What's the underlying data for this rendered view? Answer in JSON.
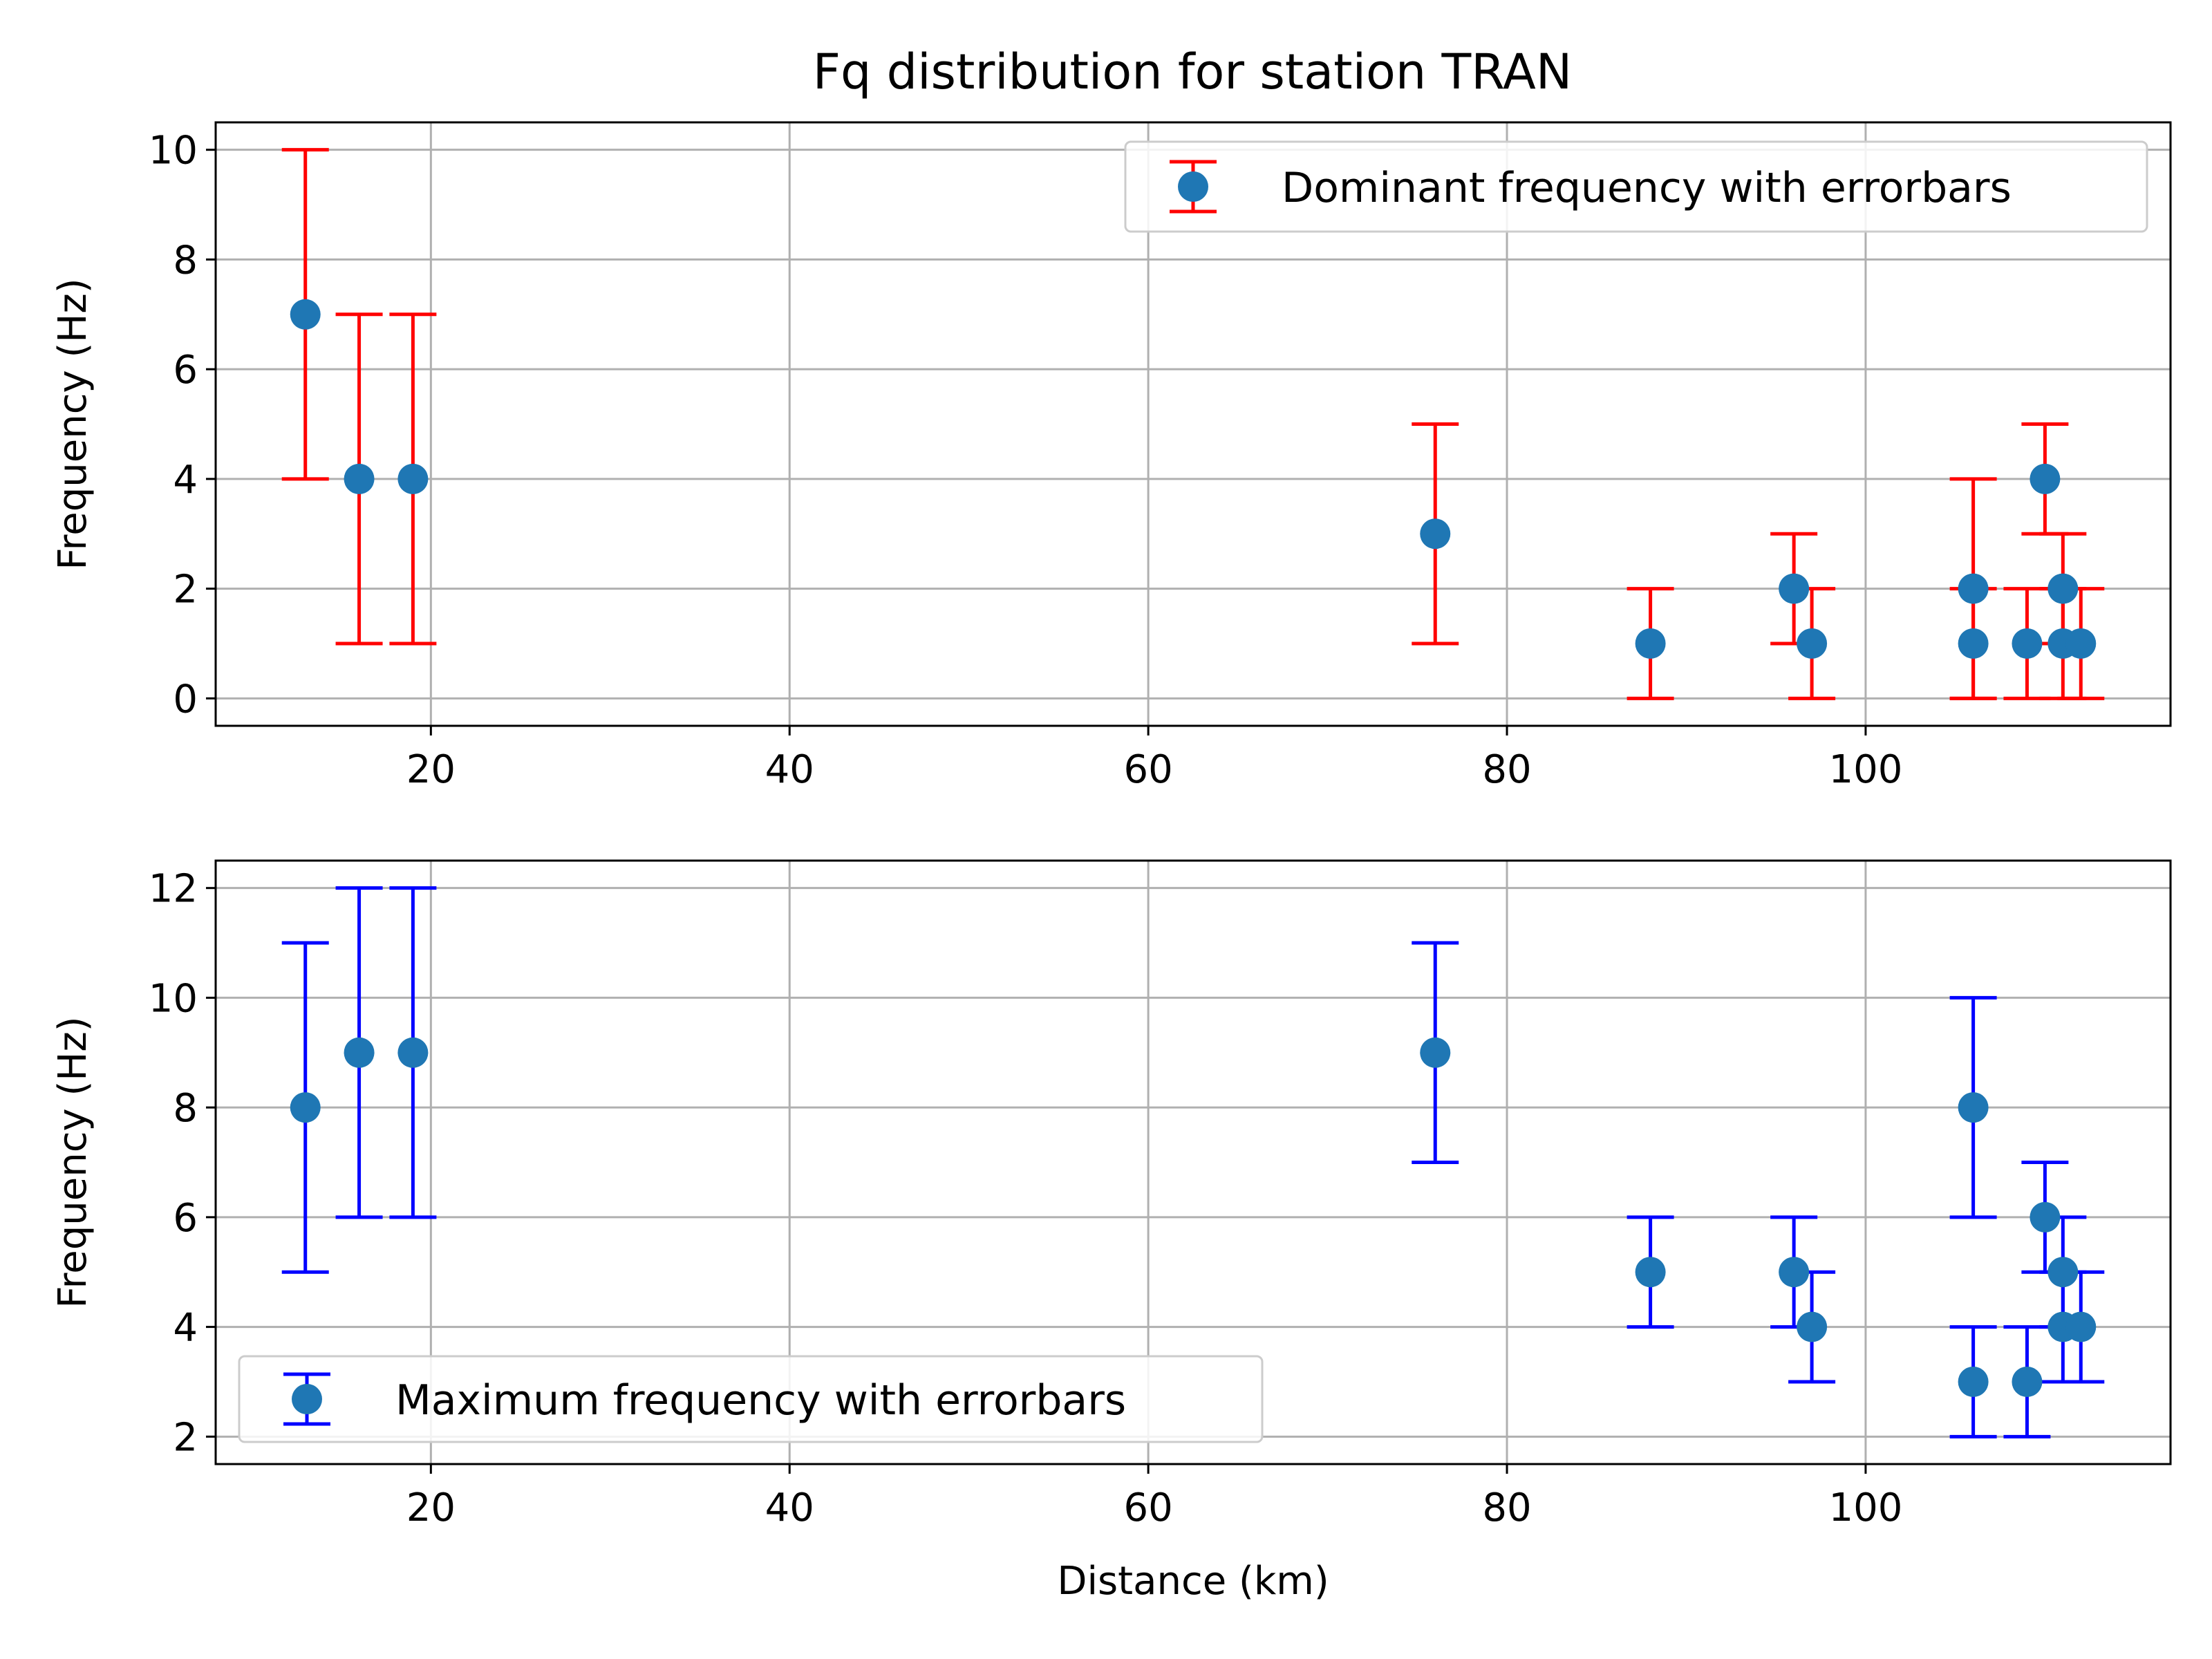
{
  "title": "Fq distribution for station TRAN",
  "colors": {
    "marker": "#1f77b4",
    "errorbar_top": "#ff0000",
    "errorbar_bottom": "#0000ff",
    "grid": "#b0b0b0",
    "legend_border": "#cccccc"
  },
  "chart_data": [
    {
      "type": "scatter",
      "title": "Fq distribution for station TRAN",
      "xlabel": "",
      "ylabel": "Frequency (Hz)",
      "xlim": [
        8,
        117
      ],
      "ylim": [
        -0.5,
        10.5
      ],
      "xticks": [
        20,
        40,
        60,
        80,
        100
      ],
      "yticks": [
        0,
        2,
        4,
        6,
        8,
        10
      ],
      "grid": true,
      "legend_position": "upper right",
      "series": [
        {
          "name": "Dominant frequency with errorbars",
          "error_color": "#ff0000",
          "marker_color": "#1f77b4",
          "points": [
            {
              "x": 13,
              "y": 7,
              "low": 4,
              "high": 10
            },
            {
              "x": 16,
              "y": 4,
              "low": 1,
              "high": 7
            },
            {
              "x": 19,
              "y": 4,
              "low": 1,
              "high": 7
            },
            {
              "x": 76,
              "y": 3,
              "low": 1,
              "high": 5
            },
            {
              "x": 88,
              "y": 1,
              "low": 0,
              "high": 2
            },
            {
              "x": 96,
              "y": 2,
              "low": 1,
              "high": 3
            },
            {
              "x": 97,
              "y": 1,
              "low": 0,
              "high": 2
            },
            {
              "x": 106,
              "y": 2,
              "low": 0,
              "high": 4
            },
            {
              "x": 106,
              "y": 1,
              "low": 0,
              "high": 2
            },
            {
              "x": 109,
              "y": 1,
              "low": 0,
              "high": 2
            },
            {
              "x": 110,
              "y": 4,
              "low": 3,
              "high": 5
            },
            {
              "x": 111,
              "y": 2,
              "low": 1,
              "high": 3
            },
            {
              "x": 111,
              "y": 1,
              "low": 0,
              "high": 2
            },
            {
              "x": 112,
              "y": 1,
              "low": 0,
              "high": 2
            }
          ]
        }
      ]
    },
    {
      "type": "scatter",
      "title": "",
      "xlabel": "Distance (km)",
      "ylabel": "Frequency (Hz)",
      "xlim": [
        8,
        117
      ],
      "ylim": [
        1.5,
        12.5
      ],
      "xticks": [
        20,
        40,
        60,
        80,
        100
      ],
      "yticks": [
        2,
        4,
        6,
        8,
        10,
        12
      ],
      "grid": true,
      "legend_position": "lower left",
      "series": [
        {
          "name": "Maximum frequency with errorbars",
          "error_color": "#0000ff",
          "marker_color": "#1f77b4",
          "points": [
            {
              "x": 13,
              "y": 8,
              "low": 5,
              "high": 11
            },
            {
              "x": 16,
              "y": 9,
              "low": 6,
              "high": 12
            },
            {
              "x": 19,
              "y": 9,
              "low": 6,
              "high": 12
            },
            {
              "x": 76,
              "y": 9,
              "low": 7,
              "high": 11
            },
            {
              "x": 88,
              "y": 5,
              "low": 4,
              "high": 6
            },
            {
              "x": 96,
              "y": 5,
              "low": 4,
              "high": 6
            },
            {
              "x": 97,
              "y": 4,
              "low": 3,
              "high": 5
            },
            {
              "x": 106,
              "y": 8,
              "low": 6,
              "high": 10
            },
            {
              "x": 106,
              "y": 3,
              "low": 2,
              "high": 4
            },
            {
              "x": 109,
              "y": 3,
              "low": 2,
              "high": 4
            },
            {
              "x": 110,
              "y": 6,
              "low": 5,
              "high": 7
            },
            {
              "x": 111,
              "y": 5,
              "low": 4,
              "high": 6
            },
            {
              "x": 111,
              "y": 4,
              "low": 3,
              "high": 5
            },
            {
              "x": 112,
              "y": 4,
              "low": 3,
              "high": 5
            }
          ]
        }
      ]
    }
  ]
}
